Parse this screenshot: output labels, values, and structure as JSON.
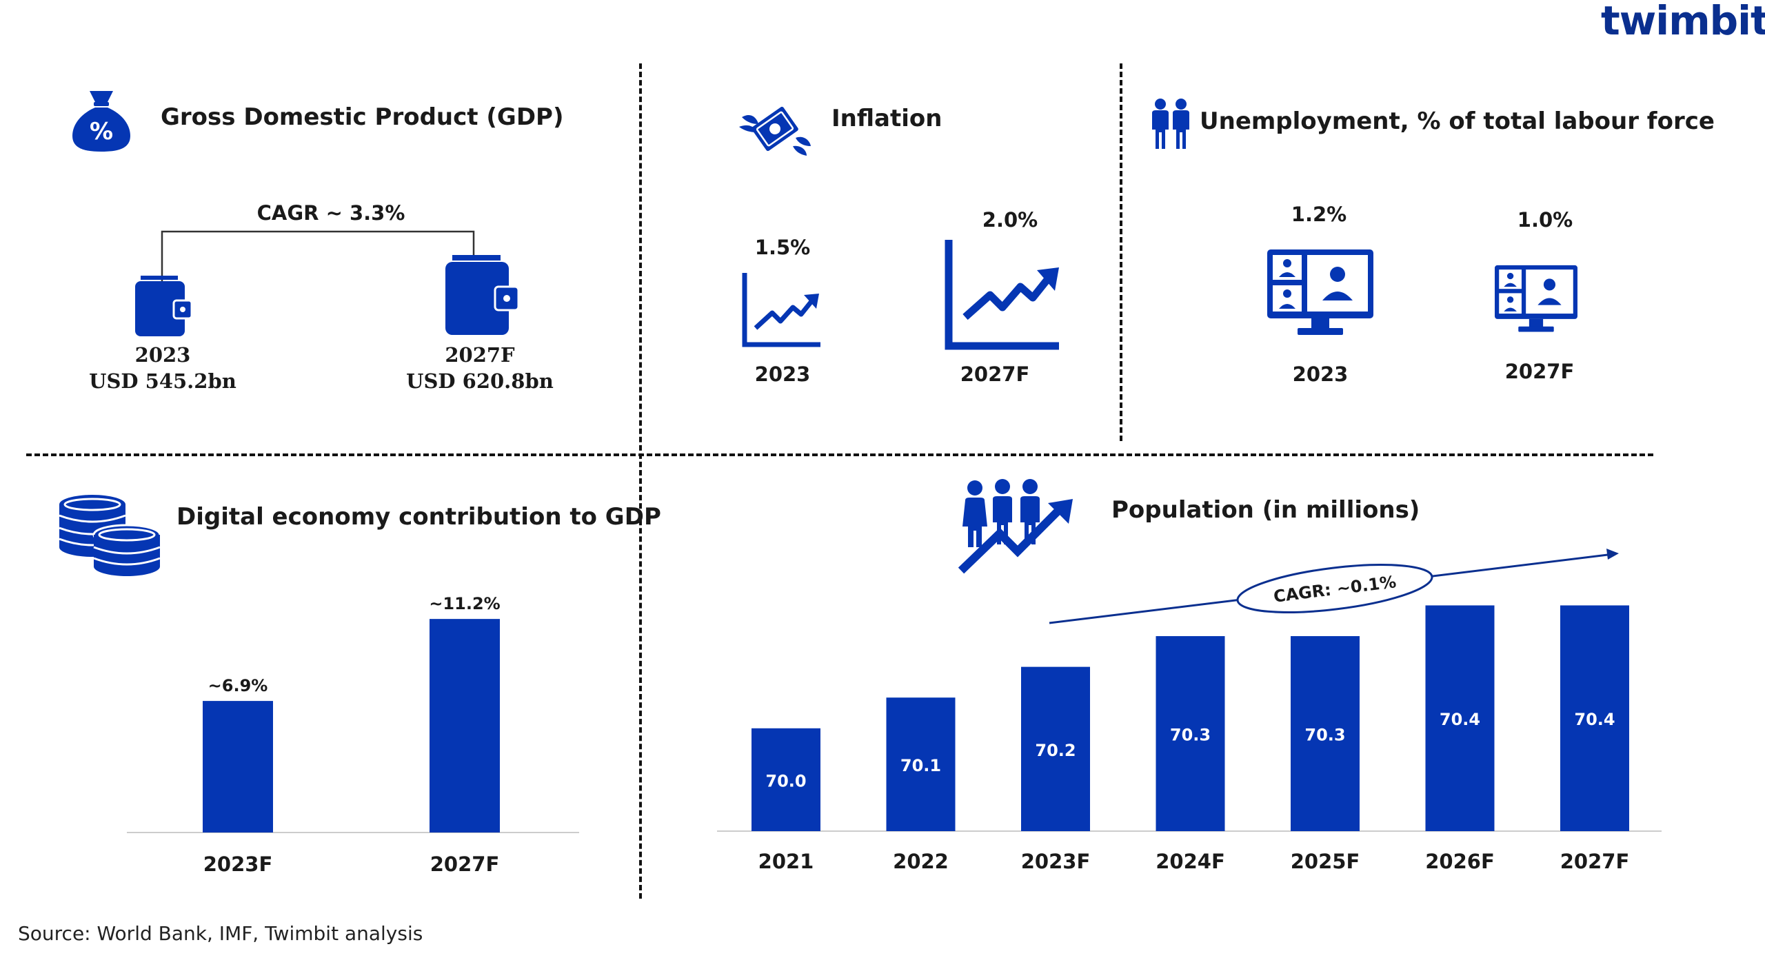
{
  "brand": {
    "name": "twimbit"
  },
  "colors": {
    "accent": "#0536b3",
    "dark_blue": "#0a2f8f",
    "text": "#1a1a1a",
    "axis": "#cccccc"
  },
  "gdp": {
    "title": "Gross Domestic Product (GDP)",
    "icon": "money-bag-percent-icon",
    "cagr": "CAGR ~ 3.3%",
    "items": [
      {
        "year": "2023",
        "value": "USD 545.2bn",
        "icon": "wallet-icon"
      },
      {
        "year": "2027F",
        "value": "USD 620.8bn",
        "icon": "wallet-icon"
      }
    ]
  },
  "inflation": {
    "title": "Inflation",
    "icon": "flying-money-icon",
    "items": [
      {
        "year": "2023",
        "value": "1.5%",
        "icon": "trend-chart-icon"
      },
      {
        "year": "2027F",
        "value": "2.0%",
        "icon": "trend-chart-icon"
      }
    ]
  },
  "unemployment": {
    "title": "Unemployment, % of total labour force",
    "icon": "people-icon",
    "items": [
      {
        "year": "2023",
        "value": "1.2%",
        "icon": "monitor-people-icon"
      },
      {
        "year": "2027F",
        "value": "1.0%",
        "icon": "monitor-people-icon"
      }
    ]
  },
  "digital": {
    "title": "Digital economy contribution to GDP",
    "icon": "coins-icon"
  },
  "population": {
    "title": "Population (in millions)",
    "icon": "population-growth-icon",
    "cagr": "CAGR: ~0.1%"
  },
  "chart_data": [
    {
      "type": "bar",
      "title": "Digital economy contribution to GDP",
      "categories": [
        "2023F",
        "2027F"
      ],
      "values": [
        6.9,
        11.2
      ],
      "value_labels": [
        "~6.9%",
        "~11.2%"
      ],
      "xlabel": "",
      "ylabel": "",
      "ylim": [
        0,
        12
      ],
      "grid": false,
      "legend": "none"
    },
    {
      "type": "bar",
      "title": "Population (in millions)",
      "categories": [
        "2021",
        "2022",
        "2023F",
        "2024F",
        "2025F",
        "2026F",
        "2027F"
      ],
      "values": [
        70.0,
        70.1,
        70.2,
        70.3,
        70.3,
        70.4,
        70.4
      ],
      "value_labels": [
        "70.0",
        "70.1",
        "70.2",
        "70.3",
        "70.3",
        "70.4",
        "70.4"
      ],
      "annotation": "CAGR: ~0.1%",
      "xlabel": "",
      "ylabel": "",
      "grid": false,
      "legend": "none"
    }
  ],
  "source": "Source: World Bank, IMF, Twimbit analysis"
}
